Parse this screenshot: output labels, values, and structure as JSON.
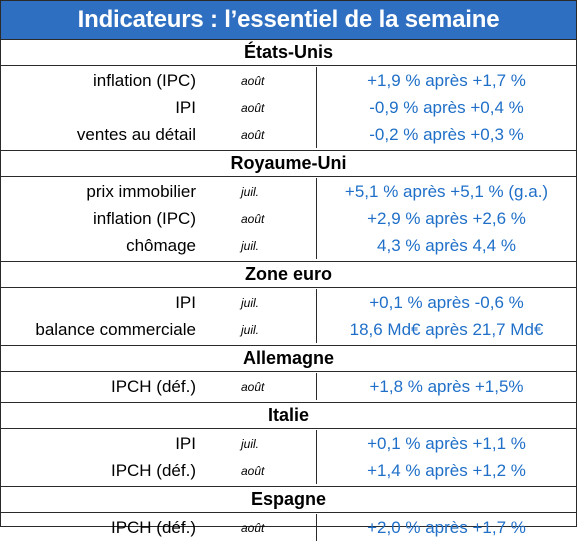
{
  "title": "Indicateurs : l’essentiel de la semaine",
  "colors": {
    "header_bg": "#2f6fc1",
    "value_text": "#1f6fc8"
  },
  "sections": [
    {
      "name": "États-Unis",
      "rows": [
        {
          "label": "inflation (IPC)",
          "period": "août",
          "value": "+1,9 % après +1,7 %"
        },
        {
          "label": "IPI",
          "period": "août",
          "value": "-0,9 % après +0,4 %"
        },
        {
          "label": "ventes au détail",
          "period": "août",
          "value": "-0,2 % après +0,3 %"
        }
      ]
    },
    {
      "name": "Royaume-Uni",
      "rows": [
        {
          "label": "prix immobilier",
          "period": "juil.",
          "value": "+5,1 % après +5,1 % (g.a.)"
        },
        {
          "label": "inflation (IPC)",
          "period": "août",
          "value": "+2,9 % après +2,6 %"
        },
        {
          "label": "chômage",
          "period": "juil.",
          "value": "4,3 % après 4,4 %"
        }
      ]
    },
    {
      "name": "Zone euro",
      "rows": [
        {
          "label": "IPI",
          "period": "juil.",
          "value": "+0,1 % après -0,6 %"
        },
        {
          "label": "balance commerciale",
          "period": "juil.",
          "value": "18,6 Md€ après 21,7 Md€"
        }
      ]
    },
    {
      "name": "Allemagne",
      "rows": [
        {
          "label": "IPCH (déf.)",
          "period": "août",
          "value": "+1,8 % après +1,5%"
        }
      ]
    },
    {
      "name": "Italie",
      "rows": [
        {
          "label": "IPI",
          "period": "juil.",
          "value": "+0,1 % après +1,1 %"
        },
        {
          "label": "IPCH (déf.)",
          "period": "août",
          "value": "+1,4 % après +1,2 %"
        }
      ]
    },
    {
      "name": "Espagne",
      "rows": [
        {
          "label": "IPCH (déf.)",
          "period": "août",
          "value": "+2,0 % après +1,7 %"
        }
      ]
    }
  ]
}
